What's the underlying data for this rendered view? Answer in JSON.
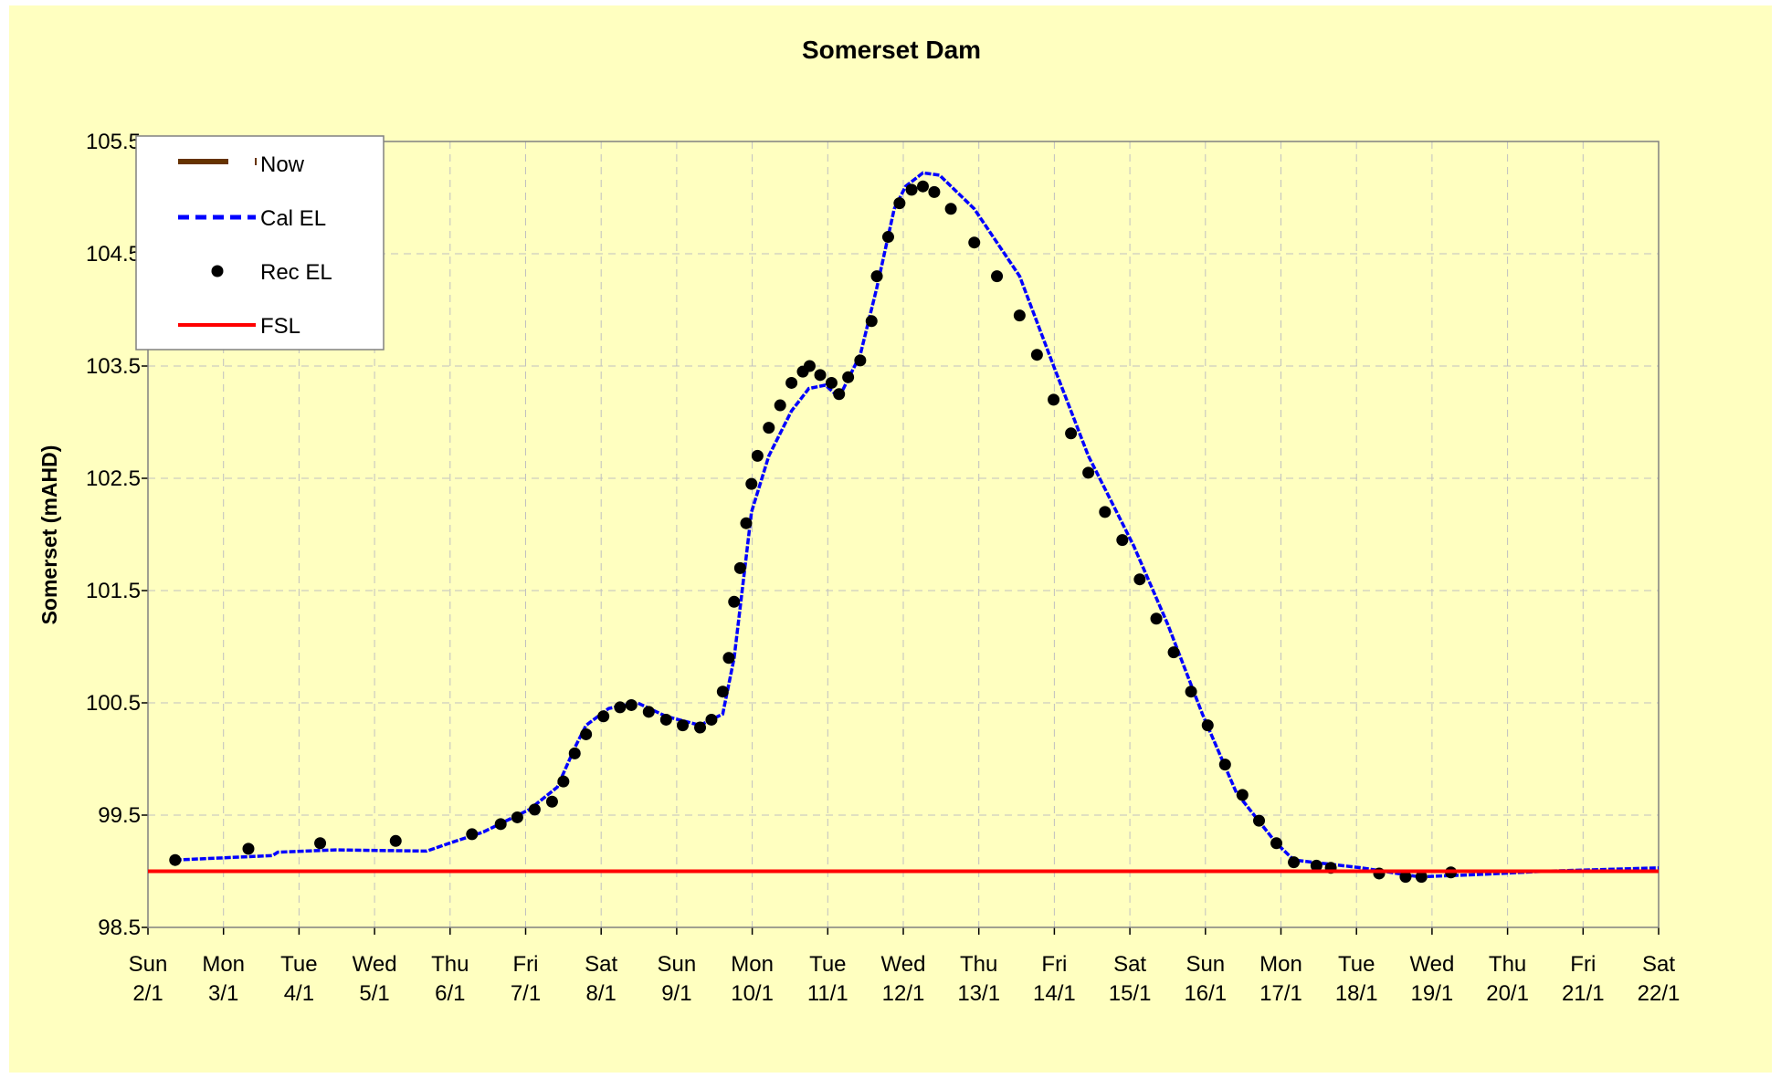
{
  "chart_data": {
    "type": "line",
    "title": "Somerset Dam",
    "y_label": "Somerset (mAHD)",
    "xlim": [
      2,
      22
    ],
    "xticks": [
      {
        "value": 2,
        "label": "Sun 2/1"
      },
      {
        "value": 3,
        "label": "Mon 3/1"
      },
      {
        "value": 4,
        "label": "Tue 4/1"
      },
      {
        "value": 5,
        "label": "Wed 5/1"
      },
      {
        "value": 6,
        "label": "Thu 6/1"
      },
      {
        "value": 7,
        "label": "Fri 7/1"
      },
      {
        "value": 8,
        "label": "Sat 8/1"
      },
      {
        "value": 9,
        "label": "Sun 9/1"
      },
      {
        "value": 10,
        "label": "Mon 10/1"
      },
      {
        "value": 11,
        "label": "Tue 11/1"
      },
      {
        "value": 12,
        "label": "Wed 12/1"
      },
      {
        "value": 13,
        "label": "Thu 13/1"
      },
      {
        "value": 14,
        "label": "Fri 14/1"
      },
      {
        "value": 15,
        "label": "Sat 15/1"
      },
      {
        "value": 16,
        "label": "Sun 16/1"
      },
      {
        "value": 17,
        "label": "Mon 17/1"
      },
      {
        "value": 18,
        "label": "Tue 18/1"
      },
      {
        "value": 19,
        "label": "Wed 19/1"
      },
      {
        "value": 20,
        "label": "Thu 20/1"
      },
      {
        "value": 21,
        "label": "Fri 21/1"
      },
      {
        "value": 22,
        "label": "Sat 22/1"
      }
    ],
    "ylim": [
      98.5,
      105.5
    ],
    "yticks": [
      98.5,
      99.5,
      100.5,
      101.5,
      102.5,
      103.5,
      104.5,
      105.5
    ],
    "grid": true,
    "legend": "upper left",
    "series": [
      {
        "name": "Now",
        "color": "#663300",
        "style": "thick",
        "x": [],
        "values": []
      },
      {
        "name": "Cal EL",
        "color": "#0000ff",
        "style": "dashed",
        "x": [
          2.36,
          3.65,
          3.72,
          4.48,
          5.69,
          5.99,
          6.44,
          7.05,
          7.42,
          7.65,
          7.8,
          8.1,
          8.48,
          8.86,
          9.31,
          9.61,
          9.76,
          9.92,
          9.99,
          10.22,
          10.52,
          10.75,
          10.97,
          11.15,
          11.43,
          11.65,
          11.88,
          12.03,
          12.26,
          12.48,
          12.94,
          13.54,
          13.99,
          14.45,
          15.05,
          15.5,
          15.96,
          16.41,
          16.94,
          17.17,
          18.07,
          18.83,
          19.58,
          20.49,
          22.0
        ],
        "values": [
          99.1,
          99.14,
          99.17,
          99.19,
          99.18,
          99.25,
          99.35,
          99.55,
          99.75,
          100.1,
          100.3,
          100.45,
          100.5,
          100.38,
          100.3,
          100.4,
          100.9,
          101.8,
          102.2,
          102.7,
          103.1,
          103.3,
          103.33,
          103.22,
          103.6,
          104.2,
          104.9,
          105.1,
          105.22,
          105.2,
          104.9,
          104.3,
          103.5,
          102.7,
          101.9,
          101.2,
          100.4,
          99.7,
          99.25,
          99.1,
          99.03,
          98.95,
          98.97,
          99.0,
          99.03
        ]
      },
      {
        "name": "Rec EL",
        "color": "#000000",
        "style": "markers",
        "x": [
          2.36,
          3.33,
          4.28,
          5.28,
          6.29,
          6.67,
          6.89,
          7.12,
          7.35,
          7.5,
          7.65,
          7.8,
          8.03,
          8.25,
          8.4,
          8.63,
          8.86,
          9.08,
          9.31,
          9.46,
          9.61,
          9.69,
          9.76,
          9.84,
          9.92,
          9.99,
          10.07,
          10.22,
          10.37,
          10.52,
          10.67,
          10.76,
          10.9,
          11.05,
          11.15,
          11.27,
          11.43,
          11.58,
          11.65,
          11.8,
          11.95,
          12.11,
          12.26,
          12.41,
          12.63,
          12.94,
          13.24,
          13.54,
          13.77,
          13.99,
          14.22,
          14.45,
          14.67,
          14.9,
          15.13,
          15.35,
          15.58,
          15.81,
          16.03,
          16.26,
          16.49,
          16.71,
          16.94,
          17.17,
          17.47,
          17.66,
          18.3,
          18.65,
          18.86,
          19.25
        ],
        "values": [
          99.1,
          99.2,
          99.25,
          99.27,
          99.33,
          99.42,
          99.48,
          99.55,
          99.62,
          99.8,
          100.05,
          100.22,
          100.38,
          100.46,
          100.48,
          100.42,
          100.35,
          100.3,
          100.28,
          100.35,
          100.6,
          100.9,
          101.4,
          101.7,
          102.1,
          102.45,
          102.7,
          102.95,
          103.15,
          103.35,
          103.45,
          103.5,
          103.42,
          103.35,
          103.25,
          103.4,
          103.55,
          103.9,
          104.3,
          104.65,
          104.95,
          105.07,
          105.1,
          105.05,
          104.9,
          104.6,
          104.3,
          103.95,
          103.6,
          103.2,
          102.9,
          102.55,
          102.2,
          101.95,
          101.6,
          101.25,
          100.95,
          100.6,
          100.3,
          99.95,
          99.68,
          99.45,
          99.25,
          99.08,
          99.05,
          99.03,
          98.98,
          98.95,
          98.95,
          98.99
        ]
      },
      {
        "name": "FSL",
        "color": "#ff0000",
        "style": "solid",
        "x": [
          2,
          22
        ],
        "values": [
          99.0,
          99.0
        ]
      }
    ]
  }
}
